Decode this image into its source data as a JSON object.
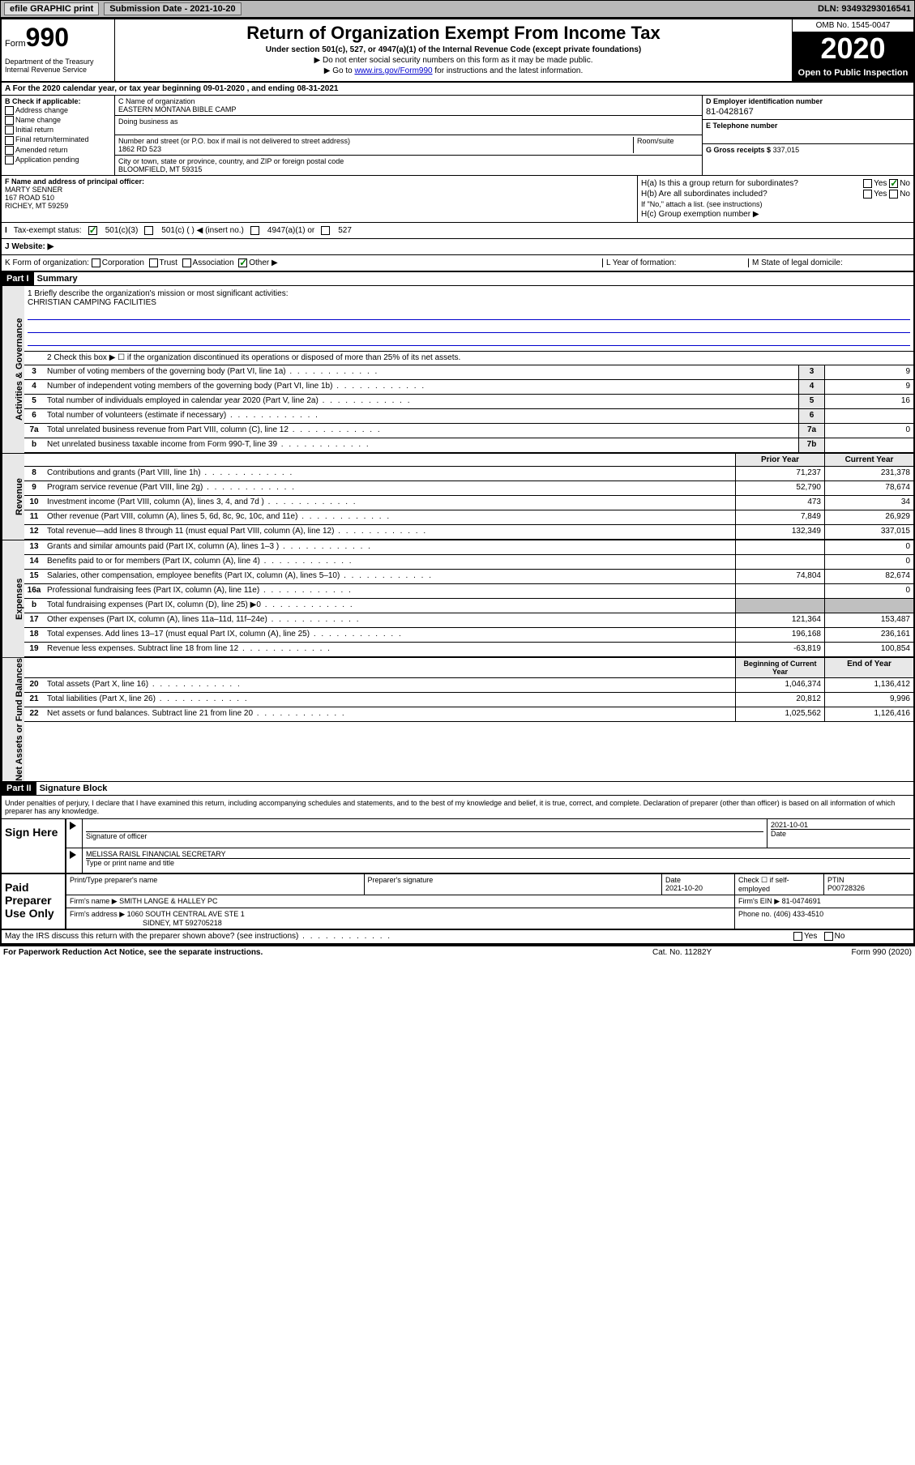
{
  "topbar": {
    "efile": "efile GRAPHIC print",
    "submission_label": "Submission Date - 2021-10-20",
    "dln": "DLN: 93493293016541"
  },
  "header": {
    "form_label": "Form",
    "form_number": "990",
    "dept": "Department of the Treasury\nInternal Revenue Service",
    "title": "Return of Organization Exempt From Income Tax",
    "subtitle": "Under section 501(c), 527, or 4947(a)(1) of the Internal Revenue Code (except private foundations)",
    "note1": "▶ Do not enter social security numbers on this form as it may be made public.",
    "note2_pre": "▶ Go to ",
    "note2_link": "www.irs.gov/Form990",
    "note2_post": " for instructions and the latest information.",
    "omb": "OMB No. 1545-0047",
    "year": "2020",
    "open": "Open to Public Inspection"
  },
  "row_a": "A For the 2020 calendar year, or tax year beginning 09-01-2020    , and ending 08-31-2021",
  "section_b": {
    "label": "B Check if applicable:",
    "items": [
      "Address change",
      "Name change",
      "Initial return",
      "Final return/terminated",
      "Amended return",
      "Application pending"
    ]
  },
  "section_c": {
    "name_label": "C Name of organization",
    "name": "EASTERN MONTANA BIBLE CAMP",
    "dba_label": "Doing business as",
    "dba": "",
    "street_label": "Number and street (or P.O. box if mail is not delivered to street address)",
    "room_label": "Room/suite",
    "street": "1862 RD 523",
    "city_label": "City or town, state or province, country, and ZIP or foreign postal code",
    "city": "BLOOMFIELD, MT  59315"
  },
  "section_d": {
    "label": "D Employer identification number",
    "value": "81-0428167"
  },
  "section_e": {
    "label": "E Telephone number",
    "value": ""
  },
  "section_g": {
    "label": "G Gross receipts $",
    "value": "337,015"
  },
  "section_f": {
    "label": "F  Name and address of principal officer:",
    "name": "MARTY SENNER",
    "street": "167 ROAD 510",
    "city": "RICHEY, MT  59259"
  },
  "section_h": {
    "ha_label": "H(a)  Is this a group return for subordinates?",
    "ha_no": "No",
    "ha_yes": "Yes",
    "hb_label": "H(b)  Are all subordinates included?",
    "hb_note": "If \"No,\" attach a list. (see instructions)",
    "hc_label": "H(c)  Group exemption number ▶"
  },
  "row_i": {
    "label": "Tax-exempt status:",
    "opt1": "501(c)(3)",
    "opt2": "501(c) (   ) ◀ (insert no.)",
    "opt3": "4947(a)(1) or",
    "opt4": "527"
  },
  "row_j": {
    "label": "J    Website: ▶"
  },
  "row_k": {
    "label": "K Form of organization:",
    "opts": [
      "Corporation",
      "Trust",
      "Association",
      "Other ▶"
    ],
    "l_label": "L Year of formation:",
    "m_label": "M State of legal domicile:"
  },
  "part1": {
    "header": "Part I",
    "title": "Summary",
    "line1_label": "1  Briefly describe the organization's mission or most significant activities:",
    "mission": "CHRISTIAN CAMPING FACILITIES",
    "line2": "2    Check this box ▶ ☐  if the organization discontinued its operations or disposed of more than 25% of its net assets.",
    "sidebar_gov": "Activities & Governance",
    "sidebar_rev": "Revenue",
    "sidebar_exp": "Expenses",
    "sidebar_net": "Net Assets or Fund Balances",
    "lines_gov": [
      {
        "n": "3",
        "d": "Number of voting members of the governing body (Part VI, line 1a)",
        "box": "3",
        "v": "9"
      },
      {
        "n": "4",
        "d": "Number of independent voting members of the governing body (Part VI, line 1b)",
        "box": "4",
        "v": "9"
      },
      {
        "n": "5",
        "d": "Total number of individuals employed in calendar year 2020 (Part V, line 2a)",
        "box": "5",
        "v": "16"
      },
      {
        "n": "6",
        "d": "Total number of volunteers (estimate if necessary)",
        "box": "6",
        "v": ""
      },
      {
        "n": "7a",
        "d": "Total unrelated business revenue from Part VIII, column (C), line 12",
        "box": "7a",
        "v": "0"
      },
      {
        "n": "b",
        "d": "Net unrelated business taxable income from Form 990-T, line 39",
        "box": "7b",
        "v": ""
      }
    ],
    "col_hdr_prior": "Prior Year",
    "col_hdr_current": "Current Year",
    "lines_rev": [
      {
        "n": "8",
        "d": "Contributions and grants (Part VIII, line 1h)",
        "p": "71,237",
        "c": "231,378"
      },
      {
        "n": "9",
        "d": "Program service revenue (Part VIII, line 2g)",
        "p": "52,790",
        "c": "78,674"
      },
      {
        "n": "10",
        "d": "Investment income (Part VIII, column (A), lines 3, 4, and 7d )",
        "p": "473",
        "c": "34"
      },
      {
        "n": "11",
        "d": "Other revenue (Part VIII, column (A), lines 5, 6d, 8c, 9c, 10c, and 11e)",
        "p": "7,849",
        "c": "26,929"
      },
      {
        "n": "12",
        "d": "Total revenue—add lines 8 through 11 (must equal Part VIII, column (A), line 12)",
        "p": "132,349",
        "c": "337,015"
      }
    ],
    "lines_exp": [
      {
        "n": "13",
        "d": "Grants and similar amounts paid (Part IX, column (A), lines 1–3 )",
        "p": "",
        "c": "0"
      },
      {
        "n": "14",
        "d": "Benefits paid to or for members (Part IX, column (A), line 4)",
        "p": "",
        "c": "0"
      },
      {
        "n": "15",
        "d": "Salaries, other compensation, employee benefits (Part IX, column (A), lines 5–10)",
        "p": "74,804",
        "c": "82,674"
      },
      {
        "n": "16a",
        "d": "Professional fundraising fees (Part IX, column (A), line 11e)",
        "p": "",
        "c": "0"
      },
      {
        "n": "b",
        "d": "Total fundraising expenses (Part IX, column (D), line 25) ▶0",
        "p": "shaded",
        "c": "shaded"
      },
      {
        "n": "17",
        "d": "Other expenses (Part IX, column (A), lines 11a–11d, 11f–24e)",
        "p": "121,364",
        "c": "153,487"
      },
      {
        "n": "18",
        "d": "Total expenses. Add lines 13–17 (must equal Part IX, column (A), line 25)",
        "p": "196,168",
        "c": "236,161"
      },
      {
        "n": "19",
        "d": "Revenue less expenses. Subtract line 18 from line 12",
        "p": "-63,819",
        "c": "100,854"
      }
    ],
    "col_hdr_begin": "Beginning of Current Year",
    "col_hdr_end": "End of Year",
    "lines_net": [
      {
        "n": "20",
        "d": "Total assets (Part X, line 16)",
        "p": "1,046,374",
        "c": "1,136,412"
      },
      {
        "n": "21",
        "d": "Total liabilities (Part X, line 26)",
        "p": "20,812",
        "c": "9,996"
      },
      {
        "n": "22",
        "d": "Net assets or fund balances. Subtract line 21 from line 20",
        "p": "1,025,562",
        "c": "1,126,416"
      }
    ]
  },
  "part2": {
    "header": "Part II",
    "title": "Signature Block",
    "declaration": "Under penalties of perjury, I declare that I have examined this return, including accompanying schedules and statements, and to the best of my knowledge and belief, it is true, correct, and complete. Declaration of preparer (other than officer) is based on all information of which preparer has any knowledge.",
    "sign_here": "Sign Here",
    "sig_officer_label": "Signature of officer",
    "sig_date": "2021-10-01",
    "sig_date_label": "Date",
    "officer_name": "MELISSA RAISL  FINANCIAL SECRETARY",
    "officer_type_label": "Type or print name and title",
    "paid_preparer": "Paid Preparer Use Only",
    "prep_name_label": "Print/Type preparer's name",
    "prep_sig_label": "Preparer's signature",
    "prep_date_label": "Date",
    "prep_date": "2021-10-20",
    "prep_check_label": "Check ☐ if self-employed",
    "ptin_label": "PTIN",
    "ptin": "P00728326",
    "firm_name_label": "Firm's name    ▶",
    "firm_name": "SMITH LANGE & HALLEY PC",
    "firm_ein_label": "Firm's EIN ▶",
    "firm_ein": "81-0474691",
    "firm_addr_label": "Firm's address ▶",
    "firm_addr": "1060 SOUTH CENTRAL AVE STE 1",
    "firm_city": "SIDNEY, MT  592705218",
    "phone_label": "Phone no.",
    "phone": "(406) 433-4510",
    "discuss": "May the IRS discuss this return with the preparer shown above? (see instructions)",
    "yes": "Yes",
    "no": "No"
  },
  "footer": {
    "paperwork": "For Paperwork Reduction Act Notice, see the separate instructions.",
    "cat": "Cat. No. 11282Y",
    "form": "Form 990 (2020)"
  }
}
